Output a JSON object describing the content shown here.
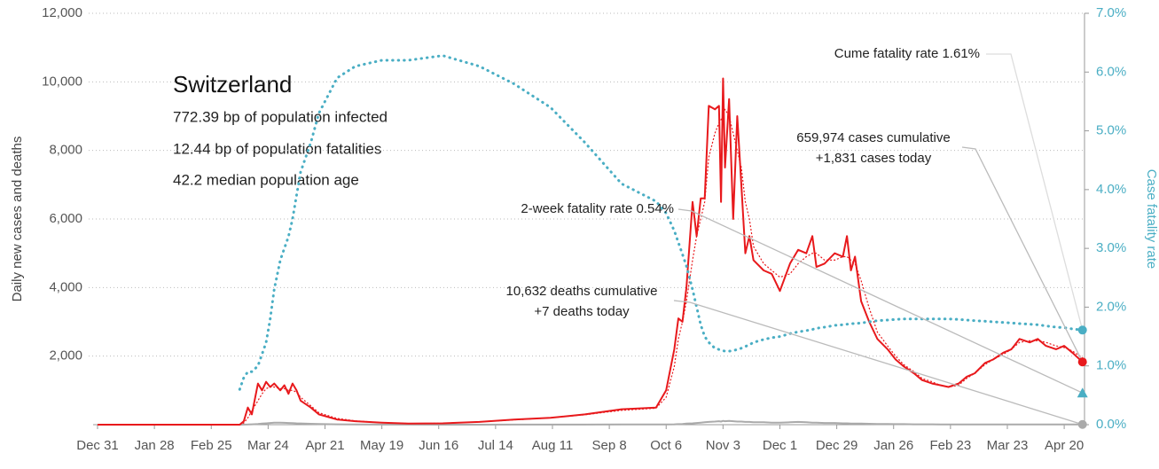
{
  "chart_data": {
    "type": "line",
    "info": {
      "title": "Switzerland",
      "lines": [
        "772.39 bp of population infected",
        "12.44 bp of population fatalities",
        "42.2 median population age"
      ]
    },
    "y_label": "Daily new cases and deaths",
    "y2_label": "Case fatality rate",
    "annotations": [
      {
        "lines": [
          "Cume fatality rate 1.61%"
        ]
      },
      {
        "lines": [
          "659,974 cases cumulative",
          "+1,831 cases today"
        ]
      },
      {
        "lines": [
          "2-week fatality rate 0.54%"
        ]
      },
      {
        "lines": [
          "10,632 deaths cumulative",
          "+7 deaths today"
        ]
      }
    ],
    "two_week_rate": 0.54,
    "two_week_color": "#4aaec4",
    "xlim": [
      0,
      486
    ],
    "xticks": [
      {
        "value": 0,
        "label": "Dec 31"
      },
      {
        "value": 28,
        "label": "Jan 28"
      },
      {
        "value": 56,
        "label": "Feb 25"
      },
      {
        "value": 84,
        "label": "Mar 24"
      },
      {
        "value": 112,
        "label": "Apr 21"
      },
      {
        "value": 140,
        "label": "May 19"
      },
      {
        "value": 168,
        "label": "Jun 16"
      },
      {
        "value": 196,
        "label": "Jul 14"
      },
      {
        "value": 224,
        "label": "Aug 11"
      },
      {
        "value": 252,
        "label": "Sep 8"
      },
      {
        "value": 280,
        "label": "Oct 6"
      },
      {
        "value": 308,
        "label": "Nov 3"
      },
      {
        "value": 336,
        "label": "Dec 1"
      },
      {
        "value": 364,
        "label": "Dec 29"
      },
      {
        "value": 392,
        "label": "Jan 26"
      },
      {
        "value": 420,
        "label": "Feb 23"
      },
      {
        "value": 448,
        "label": "Mar 23"
      },
      {
        "value": 476,
        "label": "Apr 20"
      }
    ],
    "ylim": [
      0,
      12000
    ],
    "yticks": [
      {
        "value": 2000,
        "label": "2,000"
      },
      {
        "value": 4000,
        "label": "4,000"
      },
      {
        "value": 6000,
        "label": "6,000"
      },
      {
        "value": 8000,
        "label": "8,000"
      },
      {
        "value": 10000,
        "label": "10,000"
      },
      {
        "value": 12000,
        "label": "12,000"
      }
    ],
    "y2lim": [
      0,
      7
    ],
    "y2ticks": [
      {
        "value": 0,
        "label": "0.0%"
      },
      {
        "value": 1,
        "label": "1.0%"
      },
      {
        "value": 2,
        "label": "2.0%"
      },
      {
        "value": 3,
        "label": "3.0%"
      },
      {
        "value": 4,
        "label": "4.0%"
      },
      {
        "value": 5,
        "label": "5.0%"
      },
      {
        "value": 6,
        "label": "6.0%"
      },
      {
        "value": 7,
        "label": "7.0%"
      }
    ],
    "grid": true,
    "x": [
      0,
      60,
      70,
      72,
      74,
      76,
      79,
      81,
      83,
      85,
      87,
      90,
      92,
      94,
      96,
      98,
      100,
      105,
      109,
      118,
      127,
      140,
      153,
      170,
      188,
      205,
      223,
      240,
      258,
      275,
      280,
      284,
      286,
      288,
      290,
      293,
      295,
      297,
      299,
      301,
      304,
      306,
      307,
      308,
      309,
      311,
      313,
      315,
      317,
      319,
      321,
      323,
      328,
      332,
      336,
      341,
      345,
      349,
      352,
      354,
      358,
      363,
      367,
      369,
      371,
      373,
      376,
      380,
      384,
      389,
      393,
      397,
      402,
      406,
      411,
      415,
      419,
      424,
      428,
      432,
      437,
      441,
      446,
      450,
      454,
      459,
      463,
      467,
      472,
      476,
      480,
      485
    ],
    "series": [
      {
        "color": "#4aaec4",
        "style": "dotted",
        "axis": "y2",
        "end_marker": "circle",
        "values": [
          null,
          null,
          0.6,
          0.8,
          0.9,
          0.9,
          1.0,
          1.2,
          1.4,
          1.8,
          2.3,
          2.8,
          3.0,
          3.2,
          3.5,
          3.9,
          4.3,
          4.8,
          5.3,
          5.9,
          6.1,
          6.2,
          6.2,
          6.28,
          6.1,
          5.8,
          5.4,
          4.8,
          4.1,
          3.8,
          3.6,
          3.3,
          3.1,
          2.9,
          2.7,
          2.3,
          2.0,
          1.7,
          1.5,
          1.4,
          1.3,
          1.28,
          1.27,
          1.26,
          1.25,
          1.25,
          1.26,
          1.28,
          1.3,
          1.33,
          1.36,
          1.4,
          1.45,
          1.48,
          1.5,
          1.55,
          1.58,
          1.6,
          1.62,
          1.64,
          1.66,
          1.69,
          1.7,
          1.71,
          1.72,
          1.72,
          1.73,
          1.75,
          1.77,
          1.78,
          1.79,
          1.8,
          1.8,
          1.8,
          1.8,
          1.8,
          1.8,
          1.79,
          1.78,
          1.77,
          1.76,
          1.75,
          1.74,
          1.73,
          1.72,
          1.71,
          1.7,
          1.68,
          1.66,
          1.65,
          1.63,
          1.61
        ]
      },
      {
        "color": "#e8191c",
        "style": "solid",
        "end_marker": "circle",
        "values": [
          0,
          0,
          0,
          100,
          500,
          300,
          1200,
          1000,
          1250,
          1100,
          1200,
          1000,
          1150,
          900,
          1200,
          1000,
          700,
          500,
          300,
          150,
          100,
          60,
          30,
          40,
          80,
          150,
          200,
          300,
          450,
          500,
          1000,
          2200,
          3100,
          3000,
          4000,
          6500,
          5500,
          6600,
          6600,
          9300,
          9200,
          9300,
          6500,
          10100,
          7500,
          9500,
          6000,
          9000,
          7000,
          5000,
          5500,
          4800,
          4500,
          4400,
          3900,
          4700,
          5100,
          5000,
          5500,
          4600,
          4700,
          5000,
          4900,
          5500,
          4500,
          4900,
          3600,
          3000,
          2500,
          2200,
          1900,
          1700,
          1500,
          1300,
          1200,
          1150,
          1100,
          1200,
          1400,
          1500,
          1800,
          1900,
          2100,
          2200,
          2500,
          2400,
          2500,
          2300,
          2200,
          2300,
          2100,
          1831
        ]
      },
      {
        "color": "#e8191c",
        "style": "dotted",
        "values": [
          0,
          0,
          0,
          50,
          200,
          400,
          700,
          900,
          1050,
          1100,
          1100,
          1050,
          1050,
          1000,
          1000,
          950,
          800,
          550,
          350,
          180,
          110,
          60,
          35,
          40,
          80,
          140,
          200,
          290,
          420,
          480,
          800,
          1700,
          2500,
          3000,
          3600,
          4800,
          5500,
          6000,
          6500,
          7800,
          8500,
          8800,
          8900,
          9000,
          9200,
          9000,
          8500,
          8000,
          7500,
          6500,
          6000,
          5200,
          4700,
          4500,
          4300,
          4400,
          4700,
          4900,
          5000,
          5000,
          4800,
          4800,
          4900,
          4900,
          4800,
          4700,
          4200,
          3400,
          2700,
          2300,
          2000,
          1750,
          1550,
          1350,
          1250,
          1150,
          1100,
          1150,
          1350,
          1500,
          1750,
          1900,
          2050,
          2200,
          2400,
          2450,
          2450,
          2400,
          2300,
          2250,
          2150,
          1950
        ]
      },
      {
        "color": "#aaaaaa",
        "style": "solid",
        "end_marker": "circle",
        "values": [
          0,
          0,
          0,
          2,
          5,
          10,
          20,
          30,
          40,
          50,
          60,
          60,
          55,
          50,
          45,
          40,
          35,
          25,
          20,
          10,
          5,
          3,
          2,
          1,
          1,
          2,
          2,
          3,
          4,
          5,
          8,
          10,
          15,
          20,
          30,
          40,
          50,
          60,
          70,
          80,
          90,
          100,
          90,
          110,
          100,
          110,
          100,
          90,
          90,
          80,
          80,
          70,
          70,
          60,
          60,
          70,
          80,
          70,
          60,
          60,
          50,
          50,
          40,
          40,
          30,
          30,
          30,
          25,
          20,
          20,
          15,
          15,
          10,
          10,
          10,
          8,
          6,
          5,
          5,
          5,
          5,
          5,
          5,
          5,
          5,
          5,
          5,
          5,
          5,
          5,
          5,
          7
        ]
      }
    ]
  }
}
